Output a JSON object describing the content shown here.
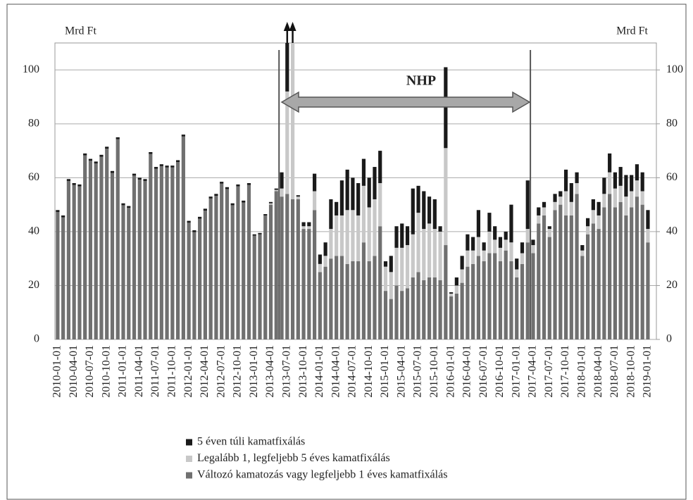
{
  "chart_data": {
    "type": "stacked_bar",
    "categories": [
      "2010-01-01",
      null,
      null,
      "2010-04-01",
      null,
      null,
      "2010-07-01",
      null,
      null,
      "2010-10-01",
      null,
      null,
      "2011-01-01",
      null,
      null,
      "2011-04-01",
      null,
      null,
      "2011-07-01",
      null,
      null,
      "2011-10-01",
      null,
      null,
      "2012-01-01",
      null,
      null,
      "2012-04-01",
      null,
      null,
      "2012-07-01",
      null,
      null,
      "2012-10-01",
      null,
      null,
      "2013-01-01",
      null,
      null,
      "2013-04-01",
      null,
      null,
      "2013-07-01",
      null,
      null,
      "2013-10-01",
      null,
      null,
      "2014-01-01",
      null,
      null,
      "2014-04-01",
      null,
      null,
      "2014-07-01",
      null,
      null,
      "2014-10-01",
      null,
      null,
      "2015-01-01",
      null,
      null,
      "2015-04-01",
      null,
      null,
      "2015-07-01",
      null,
      null,
      "2015-10-01",
      null,
      null,
      "2016-01-01",
      null,
      null,
      "2016-04-01",
      null,
      null,
      "2016-07-01",
      null,
      null,
      "2016-10-01",
      null,
      null,
      "2017-01-01",
      null,
      null,
      "2017-04-01",
      null,
      null,
      "2017-07-01",
      null,
      null,
      "2017-10-01",
      null,
      null,
      "2018-01-01",
      null,
      null,
      "2018-04-01",
      null,
      null,
      "2018-07-01",
      null,
      null,
      "2018-10-01",
      null,
      null,
      "2019-01-01"
    ],
    "series": [
      {
        "name": "5 éven túli kamatfixálás",
        "color": "#1a1a1a",
        "values": [
          0.7,
          0.7,
          0.7,
          0.7,
          0.7,
          0.7,
          0.7,
          0.7,
          0.7,
          0.7,
          0.7,
          0.7,
          0.7,
          0.7,
          0.7,
          0.7,
          0.7,
          0.7,
          0.7,
          0.7,
          0.7,
          0.7,
          0.7,
          0.7,
          0.7,
          0.7,
          0.7,
          0.7,
          0.7,
          0.7,
          0.7,
          0.7,
          0.7,
          0.7,
          0.7,
          0.7,
          0.5,
          0.5,
          0.5,
          0.5,
          0.5,
          6,
          28,
          10,
          0.5,
          1.5,
          1.5,
          6.5,
          3.5,
          5,
          11,
          5,
          13,
          15,
          12,
          12,
          10,
          11,
          12,
          12,
          2,
          6,
          8,
          9,
          7,
          17,
          10,
          14,
          10,
          11,
          2,
          30,
          0.5,
          3,
          5,
          6,
          5,
          10,
          3,
          7,
          5,
          4,
          3,
          14,
          4,
          4,
          18,
          2,
          3,
          2,
          1,
          3,
          2,
          8,
          7,
          4,
          2,
          3,
          4,
          5,
          6,
          7,
          6,
          7,
          8,
          6,
          6,
          7,
          7
        ]
      },
      {
        "name": "Legalább 1, legfeljebb 5 éves kamatfixálás",
        "color": "#c8c8c8",
        "values": [
          0,
          0,
          0,
          0,
          0,
          0,
          0,
          0,
          0,
          0,
          0,
          0,
          0,
          0,
          0,
          0,
          0,
          0,
          0,
          0,
          0,
          0,
          0,
          0,
          0,
          0,
          0,
          0,
          0,
          0,
          0,
          0,
          0,
          0,
          0,
          0,
          0,
          0,
          0,
          0.5,
          0.5,
          3,
          38,
          58,
          1,
          1,
          1,
          7,
          3,
          4,
          11,
          15,
          15,
          20,
          19,
          17,
          21,
          20,
          21,
          16,
          9,
          10,
          14,
          16,
          16,
          16,
          22,
          19,
          20,
          18,
          18,
          36,
          1,
          3,
          5,
          6,
          5,
          7,
          4,
          8,
          5,
          5,
          4,
          7,
          3,
          4,
          5,
          3,
          3,
          3,
          3,
          3,
          3,
          9,
          5,
          4,
          2,
          3,
          5,
          5,
          5,
          8,
          7,
          6,
          7,
          6,
          6,
          5,
          5
        ]
      },
      {
        "name": "Változó kamatozás vagy legfeljebb 1 éves kamatfixálás",
        "color": "#707070",
        "values": [
          47.3,
          45.3,
          58.8,
          57.3,
          56.8,
          68.3,
          66.3,
          65.3,
          67.8,
          70.8,
          61.8,
          74.3,
          49.8,
          48.8,
          60.8,
          59.3,
          58.8,
          68.8,
          63.3,
          64.3,
          63.8,
          63.8,
          65.8,
          75.3,
          43.3,
          39.8,
          44.8,
          47.8,
          52.3,
          53.3,
          57.8,
          55.8,
          49.8,
          56.8,
          50.8,
          57.3,
          38.5,
          39,
          46,
          50,
          55,
          53,
          54,
          52,
          52,
          41,
          41,
          48,
          25,
          27,
          30,
          31,
          31,
          28,
          29,
          29,
          36,
          29,
          31,
          42,
          18,
          15,
          20,
          18,
          19,
          23,
          25,
          22,
          23,
          23,
          22,
          35,
          16,
          17,
          21,
          27,
          28,
          31,
          29,
          32,
          32,
          29,
          33,
          29,
          23,
          28,
          36,
          32,
          43,
          46,
          38,
          48,
          50,
          46,
          46,
          54,
          31,
          39,
          43,
          41,
          49,
          54,
          49,
          51,
          46,
          49,
          53,
          50,
          36
        ]
      }
    ],
    "ylabel": "Mrd Ft",
    "y2label": "Mrd Ft",
    "ylim": [
      0,
      110
    ],
    "yticks": [
      0,
      20,
      40,
      60,
      80,
      100
    ],
    "y2lim": [
      0,
      110
    ],
    "y2ticks": [
      0,
      20,
      40,
      60,
      80,
      100
    ],
    "grid": true,
    "annotation": "NHP"
  }
}
